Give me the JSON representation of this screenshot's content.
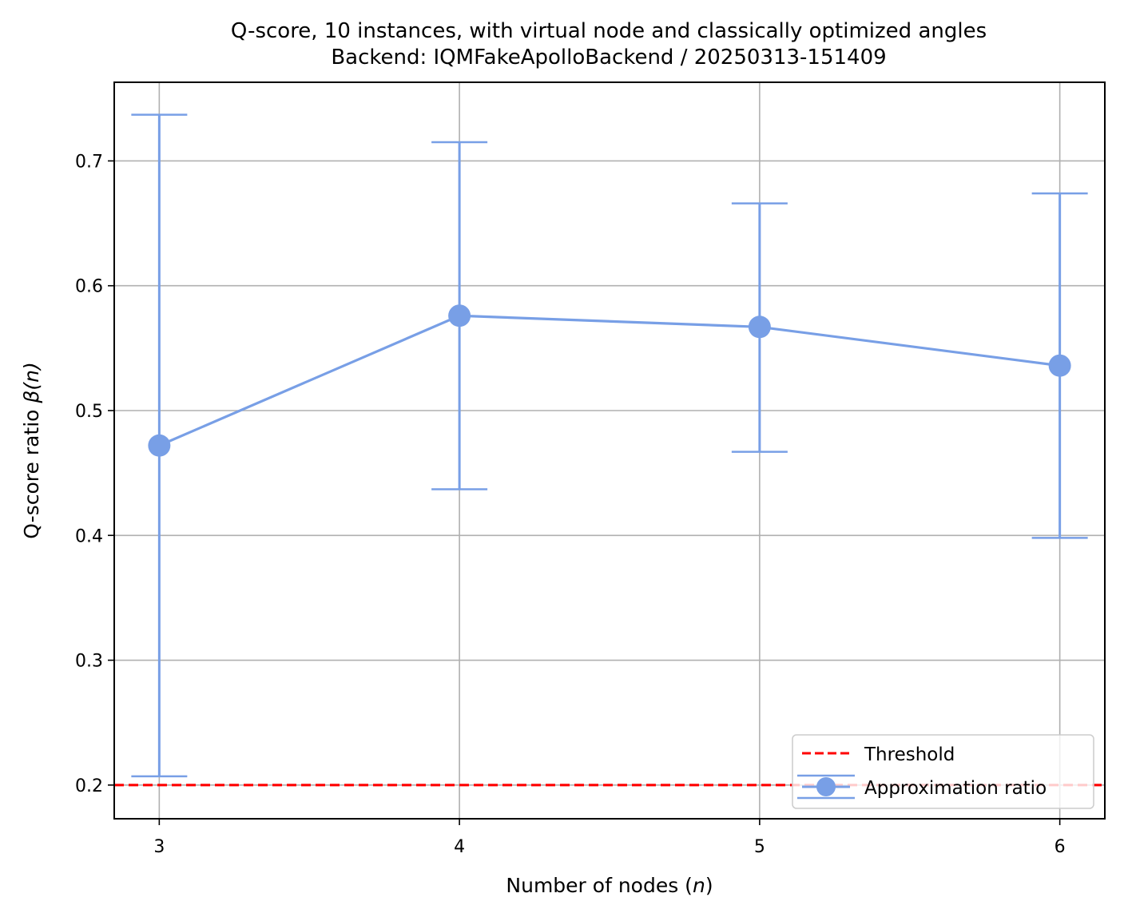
{
  "chart_data": {
    "type": "line",
    "title": "Q-score, 10 instances, with virtual node and classically optimized angles",
    "subtitle": "Backend: IQMFakeApolloBackend / 20250313-151409",
    "xlabel": "Number of nodes (n)",
    "xlabel_parts": {
      "before": "Number of nodes (",
      "var": "n",
      "after": ")"
    },
    "ylabel": "Q-score ratio β(n)",
    "ylabel_parts": {
      "before": "Q-score ratio ",
      "var": "β(n)"
    },
    "xlim": [
      2.85,
      6.15
    ],
    "ylim": [
      0.173,
      0.763
    ],
    "x_ticks": [
      "3",
      "4",
      "5",
      "6"
    ],
    "y_ticks": [
      "0.2",
      "0.3",
      "0.4",
      "0.5",
      "0.6",
      "0.7"
    ],
    "grid": true,
    "legend_position": "lower-right",
    "threshold": {
      "name": "Threshold",
      "value": 0.2,
      "color": "#ff0000",
      "style": "dashed"
    },
    "series": [
      {
        "name": "Approximation ratio",
        "color": "#789fe6",
        "x": [
          3,
          4,
          5,
          6
        ],
        "y": [
          0.472,
          0.576,
          0.567,
          0.536
        ],
        "err_low": [
          0.207,
          0.437,
          0.467,
          0.398
        ],
        "err_high": [
          0.737,
          0.715,
          0.666,
          0.674
        ]
      }
    ]
  }
}
